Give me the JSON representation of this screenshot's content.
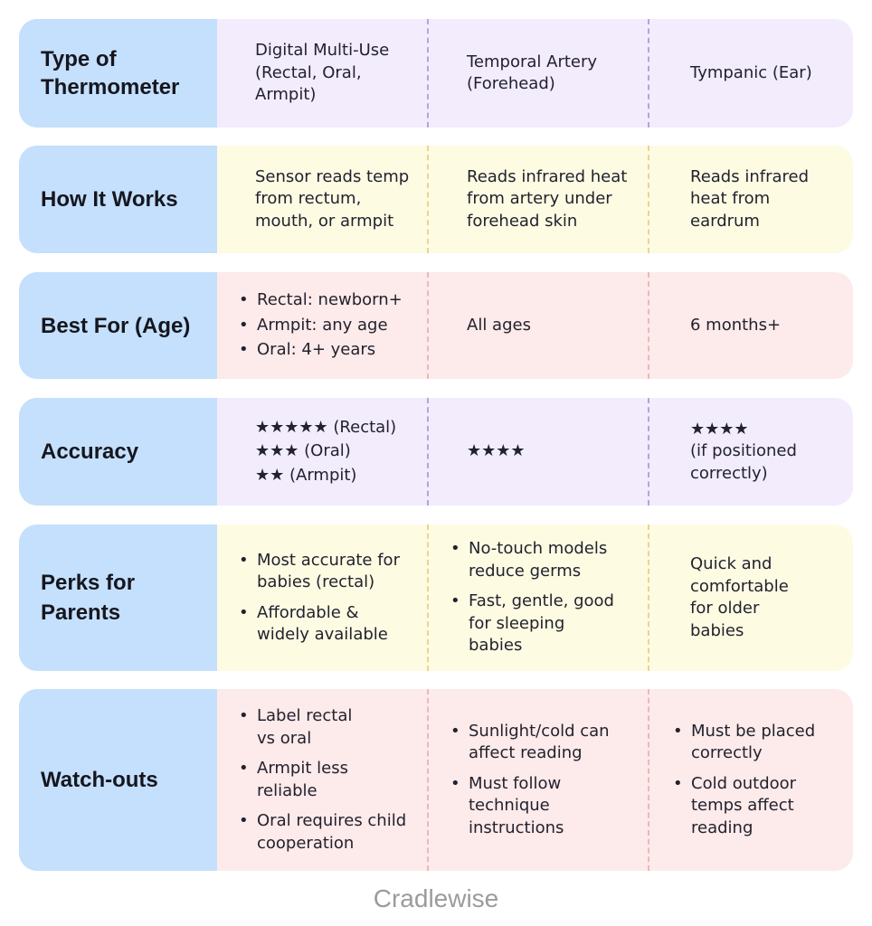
{
  "colors": {
    "label_blue": "#c4e0fc",
    "row_purple": "#f2ecfd",
    "row_yellow": "#fefbe3",
    "row_pink": "#fdeaea"
  },
  "rows": [
    {
      "label": "Type of Thermometer",
      "cells": [
        {
          "text": "Digital Multi-Use (Rectal, Oral, Armpit)"
        },
        {
          "text": "Temporal Artery (Forehead)"
        },
        {
          "text": "Tympanic (Ear)"
        }
      ]
    },
    {
      "label": "How It Works",
      "cells": [
        {
          "text": "Sensor reads temp from rectum, mouth, or armpit"
        },
        {
          "text": "Reads infrared heat from artery under forehead skin"
        },
        {
          "text": "Reads infrared heat from eardrum"
        }
      ]
    },
    {
      "label": "Best For (Age)",
      "cells": [
        {
          "bullets": [
            "Rectal: newborn+",
            "Armpit: any age",
            "Oral: 4+ years"
          ]
        },
        {
          "text": "All ages"
        },
        {
          "text": "6 months+"
        }
      ]
    },
    {
      "label": "Accuracy",
      "cells": [
        {
          "lines": [
            "★★★★★ (Rectal)",
            "★★★ (Oral)",
            "★★ (Armpit)"
          ]
        },
        {
          "lines": [
            "★★★★"
          ]
        },
        {
          "lines": [
            "★★★★",
            "(if positioned correctly)"
          ]
        }
      ]
    },
    {
      "label": "Perks for Parents",
      "cells": [
        {
          "bullets": [
            "Most accurate for babies (rectal)",
            "Affordable & widely available"
          ]
        },
        {
          "bullets": [
            "No-touch models reduce germs",
            "Fast, gentle, good for sleeping babies"
          ]
        },
        {
          "text": "Quick and comfortable for older babies"
        }
      ]
    },
    {
      "label": "Watch-outs",
      "cells": [
        {
          "bullets": [
            "Label rectal vs oral",
            "Armpit less reliable",
            "Oral requires child cooperation"
          ]
        },
        {
          "bullets": [
            "Sunlight/cold can affect reading",
            "Must follow technique instructions"
          ]
        },
        {
          "bullets": [
            "Must be placed correctly",
            "Cold outdoor temps affect reading"
          ]
        }
      ]
    }
  ],
  "footer": {
    "brand": "Cradlewise"
  }
}
